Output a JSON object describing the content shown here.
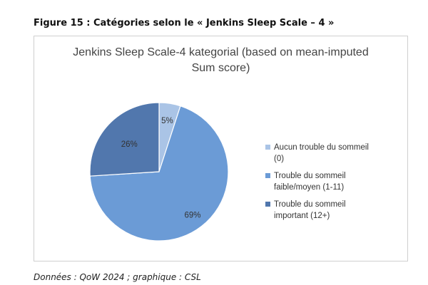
{
  "figure_title": "Figure 15 : Catégories selon le « Jenkins Sleep Scale – 4 »",
  "source_note": "Données : QoW 2024 ; graphique : CSL",
  "chart_data": {
    "type": "pie",
    "title_lines": [
      "Jenkins Sleep Scale-4 kategorial (based on mean-imputed",
      "Sum score)"
    ],
    "categories": [
      [
        "Aucun trouble du sommeil",
        "(0)"
      ],
      [
        "Trouble du sommeil",
        "faible/moyen (1-11)"
      ],
      [
        "Trouble du sommeil",
        "important (12+)"
      ]
    ],
    "values": [
      5,
      69,
      26
    ],
    "data_labels": [
      "5%",
      "69%",
      "26%"
    ],
    "colors": [
      "#aac4e6",
      "#6b9bd6",
      "#5177ad"
    ],
    "legend_position": "right"
  }
}
